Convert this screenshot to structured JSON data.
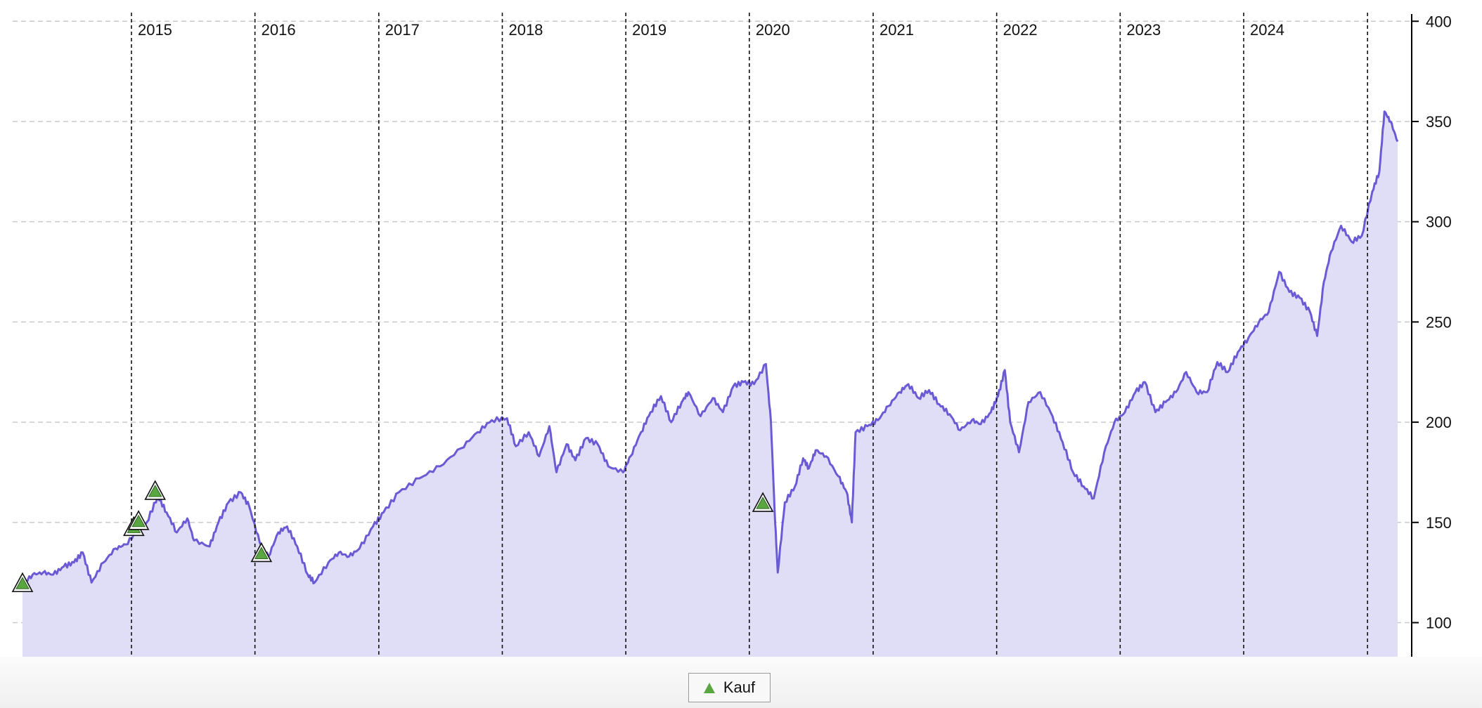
{
  "chart_data": {
    "type": "area",
    "title": "",
    "xlabel": "",
    "ylabel": "",
    "xlim": [
      "2014-02-13",
      "2025-03-31"
    ],
    "ylim": [
      83,
      405
    ],
    "y_ticks": [
      100,
      150,
      200,
      250,
      300,
      350,
      400
    ],
    "year_labels": [
      "2015",
      "2016",
      "2017",
      "2018",
      "2019",
      "2020",
      "2021",
      "2022",
      "2023",
      "2024"
    ],
    "grid": true,
    "legend_position": "bottom",
    "colors": {
      "line": "#6a5bd5",
      "fill": "#e0ddf6",
      "marker": "#5aa640"
    },
    "series": [
      {
        "type": "area",
        "x": [
          "2014-02-13",
          "2014-03-15",
          "2014-04-15",
          "2014-05-15",
          "2014-06-15",
          "2014-07-15",
          "2014-08-10",
          "2014-09-05",
          "2014-10-10",
          "2014-11-15",
          "2014-12-15",
          "2015-01-20",
          "2015-02-15",
          "2015-03-20",
          "2015-04-15",
          "2015-05-15",
          "2015-06-15",
          "2015-07-05",
          "2015-08-20",
          "2015-09-15",
          "2015-10-15",
          "2015-11-20",
          "2015-12-15",
          "2016-01-15",
          "2016-02-10",
          "2016-03-10",
          "2016-04-05",
          "2016-05-05",
          "2016-06-05",
          "2016-06-25",
          "2016-08-05",
          "2016-09-05",
          "2016-10-05",
          "2016-11-05",
          "2016-12-15",
          "2017-01-15",
          "2017-03-01",
          "2017-05-01",
          "2017-07-01",
          "2017-09-01",
          "2017-10-20",
          "2017-12-01",
          "2018-01-15",
          "2018-02-10",
          "2018-03-20",
          "2018-04-20",
          "2018-05-20",
          "2018-06-10",
          "2018-07-10",
          "2018-08-05",
          "2018-09-05",
          "2018-10-10",
          "2018-11-10",
          "2018-12-24",
          "2019-01-15",
          "2019-02-15",
          "2019-03-15",
          "2019-04-15",
          "2019-05-15",
          "2019-06-15",
          "2019-07-05",
          "2019-08-10",
          "2019-09-15",
          "2019-10-15",
          "2019-11-15",
          "2019-12-15",
          "2020-01-15",
          "2020-02-19",
          "2020-03-05",
          "2020-03-16",
          "2020-03-25",
          "2020-04-15",
          "2020-05-15",
          "2020-06-08",
          "2020-06-25",
          "2020-07-15",
          "2020-08-15",
          "2020-09-20",
          "2020-10-15",
          "2020-10-30",
          "2020-11-10",
          "2020-12-15",
          "2021-01-15",
          "2021-02-15",
          "2021-03-20",
          "2021-04-15",
          "2021-05-15",
          "2021-06-15",
          "2021-07-15",
          "2021-08-15",
          "2021-09-15",
          "2021-10-20",
          "2021-11-15",
          "2021-12-15",
          "2022-01-05",
          "2022-01-25",
          "2022-02-10",
          "2022-03-08",
          "2022-04-05",
          "2022-05-10",
          "2022-06-15",
          "2022-07-15",
          "2022-08-15",
          "2022-09-15",
          "2022-10-15",
          "2022-11-15",
          "2022-12-15",
          "2023-01-15",
          "2023-02-15",
          "2023-03-15",
          "2023-04-15",
          "2023-05-15",
          "2023-06-15",
          "2023-07-15",
          "2023-08-15",
          "2023-09-15",
          "2023-10-15",
          "2023-11-15",
          "2023-12-15",
          "2024-01-15",
          "2024-02-15",
          "2024-03-15",
          "2024-04-15",
          "2024-05-15",
          "2024-06-15",
          "2024-07-15",
          "2024-08-05",
          "2024-08-25",
          "2024-09-15",
          "2024-10-15",
          "2024-11-15",
          "2024-12-15",
          "2025-01-15",
          "2025-02-05",
          "2025-02-20",
          "2025-03-10",
          "2025-03-31"
        ],
        "y": [
          119,
          124,
          125,
          124,
          128,
          130,
          135,
          120,
          130,
          137,
          139,
          146,
          150,
          163,
          155,
          145,
          152,
          141,
          138,
          150,
          160,
          165,
          158,
          140,
          133,
          145,
          148,
          138,
          124,
          120,
          130,
          135,
          133,
          137,
          148,
          155,
          165,
          172,
          178,
          187,
          195,
          201,
          202,
          188,
          195,
          183,
          198,
          175,
          189,
          181,
          192,
          189,
          178,
          175,
          183,
          195,
          205,
          213,
          200,
          210,
          215,
          203,
          212,
          205,
          218,
          220,
          219,
          229,
          200,
          155,
          125,
          160,
          168,
          182,
          177,
          186,
          183,
          173,
          165,
          150,
          195,
          198,
          201,
          208,
          215,
          219,
          212,
          216,
          209,
          204,
          196,
          201,
          199,
          205,
          213,
          226,
          200,
          185,
          210,
          215,
          203,
          190,
          175,
          168,
          162,
          185,
          200,
          205,
          215,
          220,
          205,
          210,
          215,
          225,
          215,
          215,
          230,
          225,
          235,
          242,
          250,
          255,
          275,
          265,
          262,
          255,
          243,
          270,
          285,
          298,
          290,
          293,
          315,
          325,
          355,
          350,
          340
        ],
        "name": ""
      },
      {
        "type": "scatter",
        "name": "Kauf",
        "x": [
          "2014-02-13",
          "2015-01-08",
          "2015-01-22",
          "2015-03-12",
          "2016-01-20",
          "2020-02-10"
        ],
        "y": [
          119,
          147,
          150,
          165,
          134,
          159
        ]
      }
    ]
  },
  "legend": {
    "label": "Kauf",
    "marker_icon": "triangle-up-icon"
  }
}
